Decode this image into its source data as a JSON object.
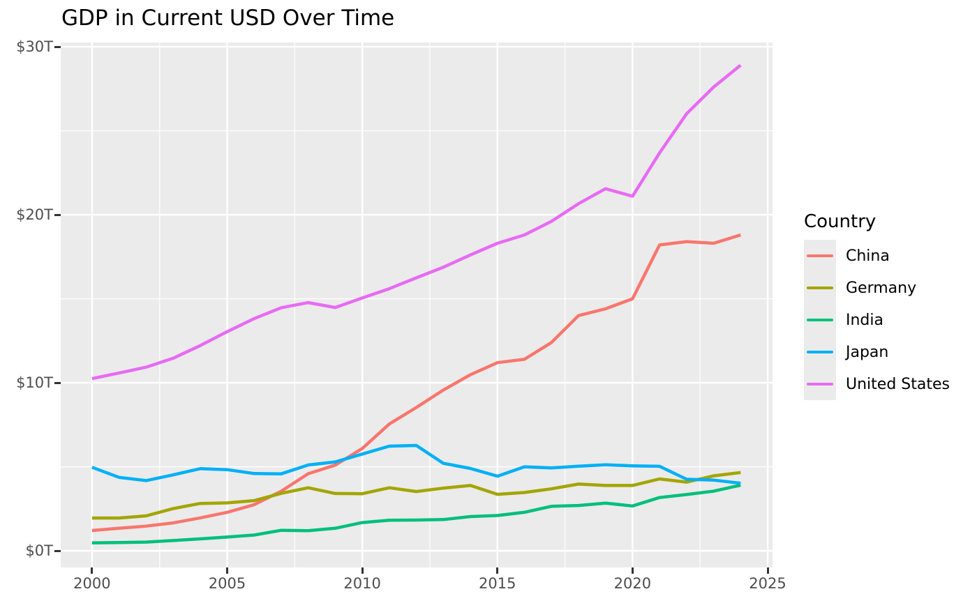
{
  "title": "GDP in Current USD Over Time",
  "legend": {
    "title": "Country",
    "entries": [
      {
        "label": "China",
        "color": "#F8766D"
      },
      {
        "label": "Germany",
        "color": "#A3A500"
      },
      {
        "label": "India",
        "color": "#00BF7D"
      },
      {
        "label": "Japan",
        "color": "#00B0F6"
      },
      {
        "label": "United States",
        "color": "#E76BF3"
      }
    ]
  },
  "chart_data": {
    "type": "line",
    "title": "GDP in Current USD Over Time",
    "xlabel": "",
    "ylabel": "",
    "unit": "trillions of current USD",
    "legend_title": "Country",
    "legend_position": "right",
    "panel_background": "#EBEBEB",
    "grid_color": "#FFFFFF",
    "axis_text_color": "#4D4D4D",
    "grid": {
      "major": true,
      "minor": true
    },
    "x": [
      2000,
      2001,
      2002,
      2003,
      2004,
      2005,
      2006,
      2007,
      2008,
      2009,
      2010,
      2011,
      2012,
      2013,
      2014,
      2015,
      2016,
      2017,
      2018,
      2019,
      2020,
      2021,
      2022,
      2023,
      2024
    ],
    "series": [
      {
        "name": "China",
        "color": "#F8766D",
        "values": [
          1.21,
          1.34,
          1.47,
          1.66,
          1.96,
          2.29,
          2.75,
          3.55,
          4.59,
          5.1,
          6.09,
          7.55,
          8.53,
          9.57,
          10.48,
          11.2,
          11.4,
          12.4,
          14.0,
          14.4,
          15.0,
          18.2,
          18.4,
          18.3,
          18.8
        ]
      },
      {
        "name": "Germany",
        "color": "#A3A500",
        "values": [
          1.95,
          1.95,
          2.08,
          2.51,
          2.82,
          2.85,
          2.99,
          3.42,
          3.75,
          3.41,
          3.4,
          3.75,
          3.53,
          3.73,
          3.89,
          3.36,
          3.47,
          3.69,
          3.97,
          3.89,
          3.89,
          4.28,
          4.09,
          4.46,
          4.66
        ]
      },
      {
        "name": "India",
        "color": "#00BF7D",
        "values": [
          0.47,
          0.49,
          0.52,
          0.61,
          0.71,
          0.82,
          0.94,
          1.22,
          1.2,
          1.34,
          1.68,
          1.82,
          1.83,
          1.86,
          2.04,
          2.1,
          2.29,
          2.65,
          2.7,
          2.84,
          2.67,
          3.17,
          3.35,
          3.55,
          3.91
        ]
      },
      {
        "name": "Japan",
        "color": "#00B0F6",
        "values": [
          4.97,
          4.37,
          4.18,
          4.52,
          4.89,
          4.83,
          4.6,
          4.58,
          5.11,
          5.29,
          5.76,
          6.23,
          6.27,
          5.21,
          4.9,
          4.44,
          5.0,
          4.93,
          5.04,
          5.12,
          5.06,
          5.03,
          4.26,
          4.21,
          4.02
        ]
      },
      {
        "name": "United States",
        "color": "#E76BF3",
        "values": [
          10.25,
          10.58,
          10.93,
          11.46,
          12.21,
          13.04,
          13.82,
          14.47,
          14.77,
          14.48,
          15.05,
          15.6,
          16.25,
          16.88,
          17.61,
          18.3,
          18.8,
          19.61,
          20.66,
          21.55,
          21.1,
          23.68,
          26.01,
          27.6,
          28.9
        ]
      }
    ],
    "x_ticks": [
      2000,
      2005,
      2010,
      2015,
      2020,
      2025
    ],
    "x_tick_labels": [
      "2000",
      "2005",
      "2010",
      "2015",
      "2020",
      "2025"
    ],
    "x_minor_ticks": [
      2002.5,
      2007.5,
      2012.5,
      2017.5,
      2022.5
    ],
    "y_ticks": [
      0,
      10,
      20,
      30
    ],
    "y_tick_labels": [
      "$0T",
      "$10T",
      "$20T",
      "$30T"
    ],
    "y_minor_ticks": [
      5,
      15,
      25
    ],
    "xlim": [
      1998.84,
      2025.18
    ],
    "ylim": [
      -0.99,
      30.25
    ]
  }
}
